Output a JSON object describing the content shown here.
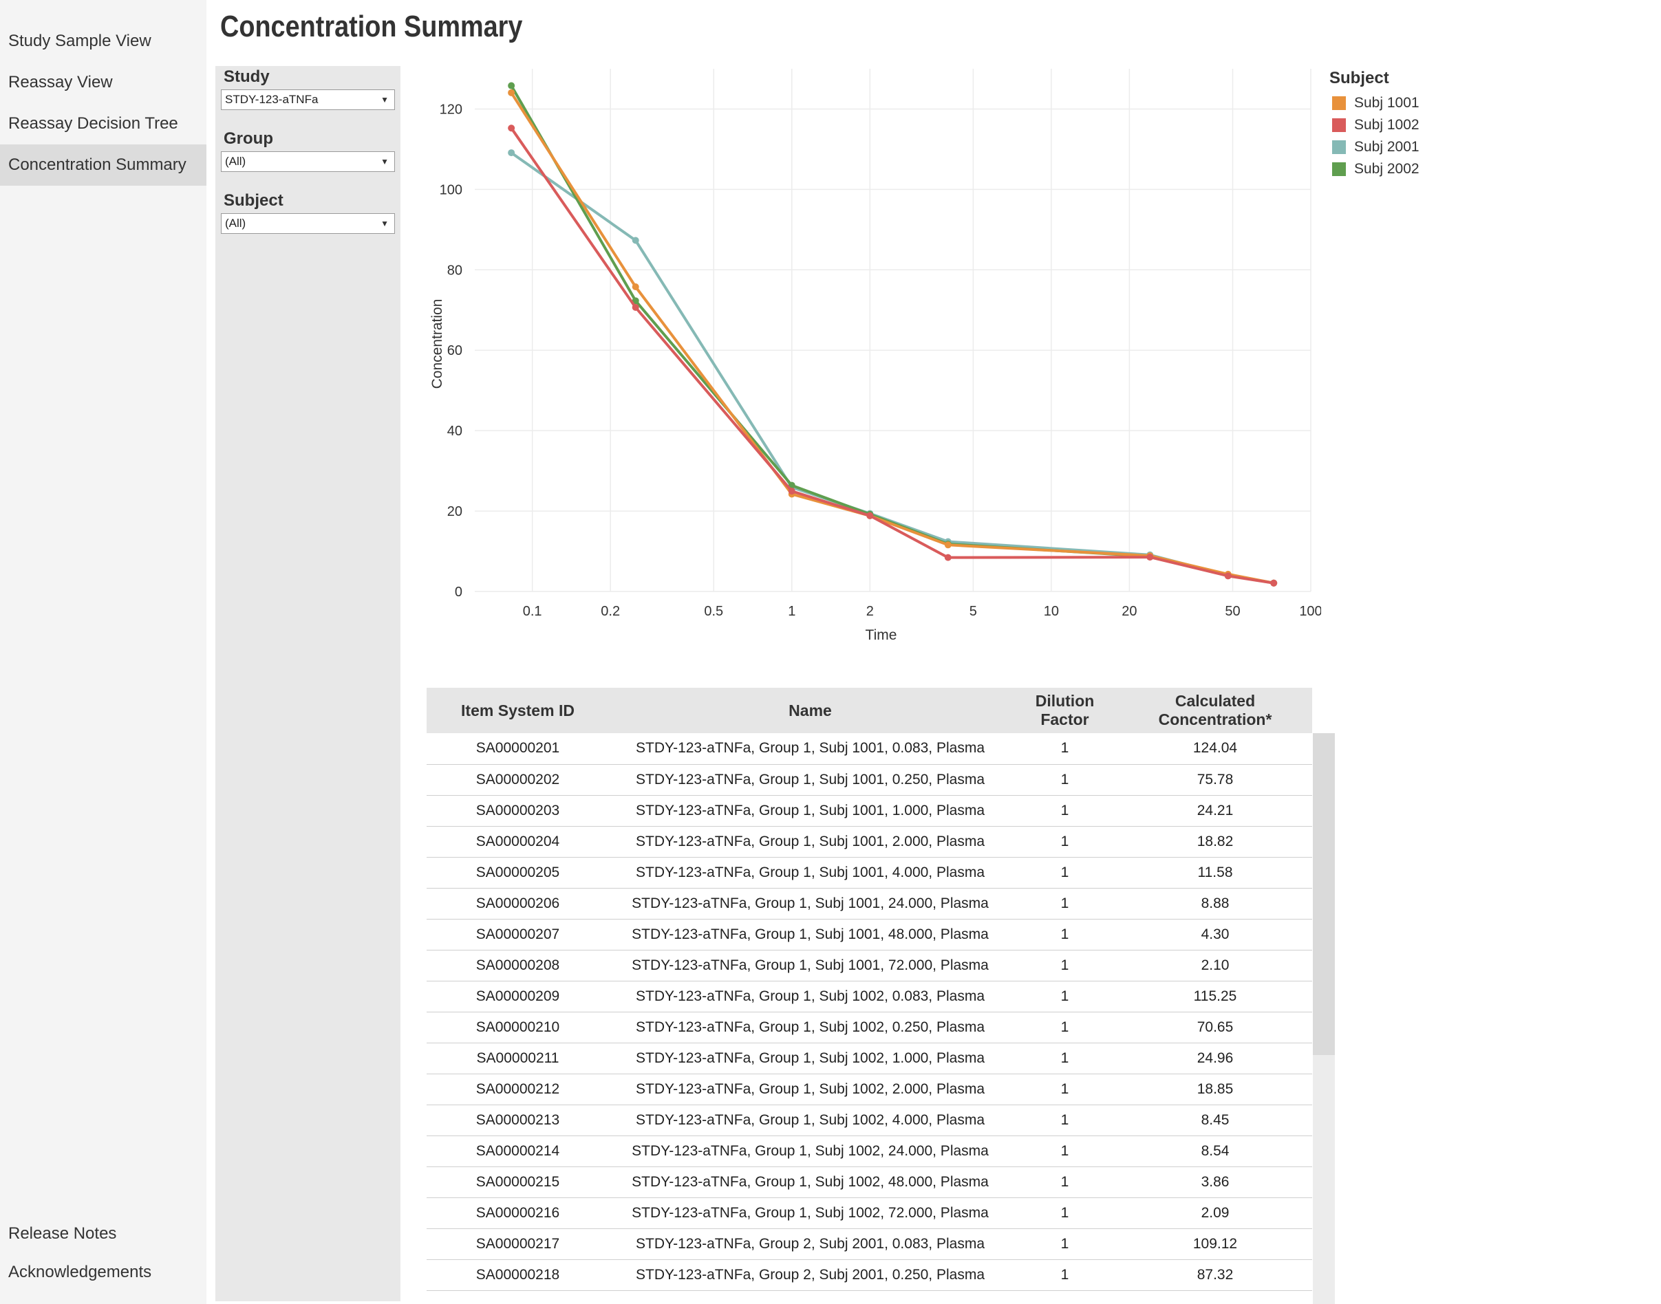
{
  "nav": {
    "items": [
      {
        "label": "Study Sample View"
      },
      {
        "label": "Reassay View"
      },
      {
        "label": "Reassay Decision Tree"
      },
      {
        "label": "Concentration Summary",
        "active": true
      }
    ],
    "footer": [
      {
        "label": "Release Notes"
      },
      {
        "label": "Acknowledgements"
      }
    ]
  },
  "page": {
    "title": "Concentration Summary"
  },
  "filters": {
    "study": {
      "label": "Study",
      "value": "STDY-123-aTNFa"
    },
    "group": {
      "label": "Group",
      "value": "(All)"
    },
    "subject": {
      "label": "Subject",
      "value": "(All)"
    }
  },
  "legend": {
    "title": "Subject",
    "items": [
      {
        "name": "Subj 1001",
        "color": "#e8913b"
      },
      {
        "name": "Subj 1002",
        "color": "#d95b5b"
      },
      {
        "name": "Subj 2001",
        "color": "#85b9b5"
      },
      {
        "name": "Subj 2002",
        "color": "#5f9e4f"
      }
    ]
  },
  "chart_data": {
    "type": "line",
    "xlabel": "Time",
    "ylabel": "Concentration",
    "x_scale": "log",
    "xlim": [
      0.06,
      100
    ],
    "ylim": [
      0,
      130
    ],
    "x_ticks": [
      0.1,
      0.2,
      0.5,
      1,
      2,
      5,
      10,
      20,
      50,
      100
    ],
    "x_tick_labels": [
      "0.1",
      "0.2",
      "0.5",
      "1",
      "2",
      "5",
      "10",
      "20",
      "50",
      "100"
    ],
    "y_ticks": [
      0,
      20,
      40,
      60,
      80,
      100,
      120
    ],
    "grid": true,
    "series": [
      {
        "name": "Subj 1001",
        "color": "#e8913b",
        "x": [
          0.083,
          0.25,
          1,
          2,
          4,
          24,
          48,
          72
        ],
        "y": [
          124.04,
          75.78,
          24.21,
          18.82,
          11.58,
          8.88,
          4.3,
          2.1
        ]
      },
      {
        "name": "Subj 1002",
        "color": "#d95b5b",
        "x": [
          0.083,
          0.25,
          1,
          2,
          4,
          24,
          48,
          72
        ],
        "y": [
          115.25,
          70.65,
          24.96,
          18.85,
          8.45,
          8.54,
          3.86,
          2.09
        ]
      },
      {
        "name": "Subj 2001",
        "color": "#85b9b5",
        "x": [
          0.083,
          0.25,
          1,
          2,
          4,
          24,
          48,
          72
        ],
        "y": [
          109.12,
          87.32,
          25.9,
          19.4,
          12.4,
          9.1,
          4.0,
          2.1
        ]
      },
      {
        "name": "Subj 2002",
        "color": "#5f9e4f",
        "x": [
          0.083,
          0.25,
          1,
          2,
          4,
          24,
          48,
          72
        ],
        "y": [
          125.8,
          72.3,
          26.4,
          19.2,
          11.8,
          8.7,
          4.1,
          2.1
        ]
      }
    ]
  },
  "table": {
    "headers": [
      "Item System ID",
      "Name",
      "Dilution Factor",
      "Calculated Concentration*"
    ],
    "rows": [
      [
        "SA00000201",
        "STDY-123-aTNFa, Group 1, Subj 1001, 0.083, Plasma",
        "1",
        "124.04"
      ],
      [
        "SA00000202",
        "STDY-123-aTNFa, Group 1, Subj 1001, 0.250, Plasma",
        "1",
        "75.78"
      ],
      [
        "SA00000203",
        "STDY-123-aTNFa, Group 1, Subj 1001, 1.000, Plasma",
        "1",
        "24.21"
      ],
      [
        "SA00000204",
        "STDY-123-aTNFa, Group 1, Subj 1001, 2.000, Plasma",
        "1",
        "18.82"
      ],
      [
        "SA00000205",
        "STDY-123-aTNFa, Group 1, Subj 1001, 4.000, Plasma",
        "1",
        "11.58"
      ],
      [
        "SA00000206",
        "STDY-123-aTNFa, Group 1, Subj 1001, 24.000, Plasma",
        "1",
        "8.88"
      ],
      [
        "SA00000207",
        "STDY-123-aTNFa, Group 1, Subj 1001, 48.000, Plasma",
        "1",
        "4.30"
      ],
      [
        "SA00000208",
        "STDY-123-aTNFa, Group 1, Subj 1001, 72.000, Plasma",
        "1",
        "2.10"
      ],
      [
        "SA00000209",
        "STDY-123-aTNFa, Group 1, Subj 1002, 0.083, Plasma",
        "1",
        "115.25"
      ],
      [
        "SA00000210",
        "STDY-123-aTNFa, Group 1, Subj 1002, 0.250, Plasma",
        "1",
        "70.65"
      ],
      [
        "SA00000211",
        "STDY-123-aTNFa, Group 1, Subj 1002, 1.000, Plasma",
        "1",
        "24.96"
      ],
      [
        "SA00000212",
        "STDY-123-aTNFa, Group 1, Subj 1002, 2.000, Plasma",
        "1",
        "18.85"
      ],
      [
        "SA00000213",
        "STDY-123-aTNFa, Group 1, Subj 1002, 4.000, Plasma",
        "1",
        "8.45"
      ],
      [
        "SA00000214",
        "STDY-123-aTNFa, Group 1, Subj 1002, 24.000, Plasma",
        "1",
        "8.54"
      ],
      [
        "SA00000215",
        "STDY-123-aTNFa, Group 1, Subj 1002, 48.000, Plasma",
        "1",
        "3.86"
      ],
      [
        "SA00000216",
        "STDY-123-aTNFa, Group 1, Subj 1002, 72.000, Plasma",
        "1",
        "2.09"
      ],
      [
        "SA00000217",
        "STDY-123-aTNFa, Group 2, Subj 2001, 0.083, Plasma",
        "1",
        "109.12"
      ],
      [
        "SA00000218",
        "STDY-123-aTNFa, Group 2, Subj 2001, 0.250, Plasma",
        "1",
        "87.32"
      ]
    ]
  }
}
